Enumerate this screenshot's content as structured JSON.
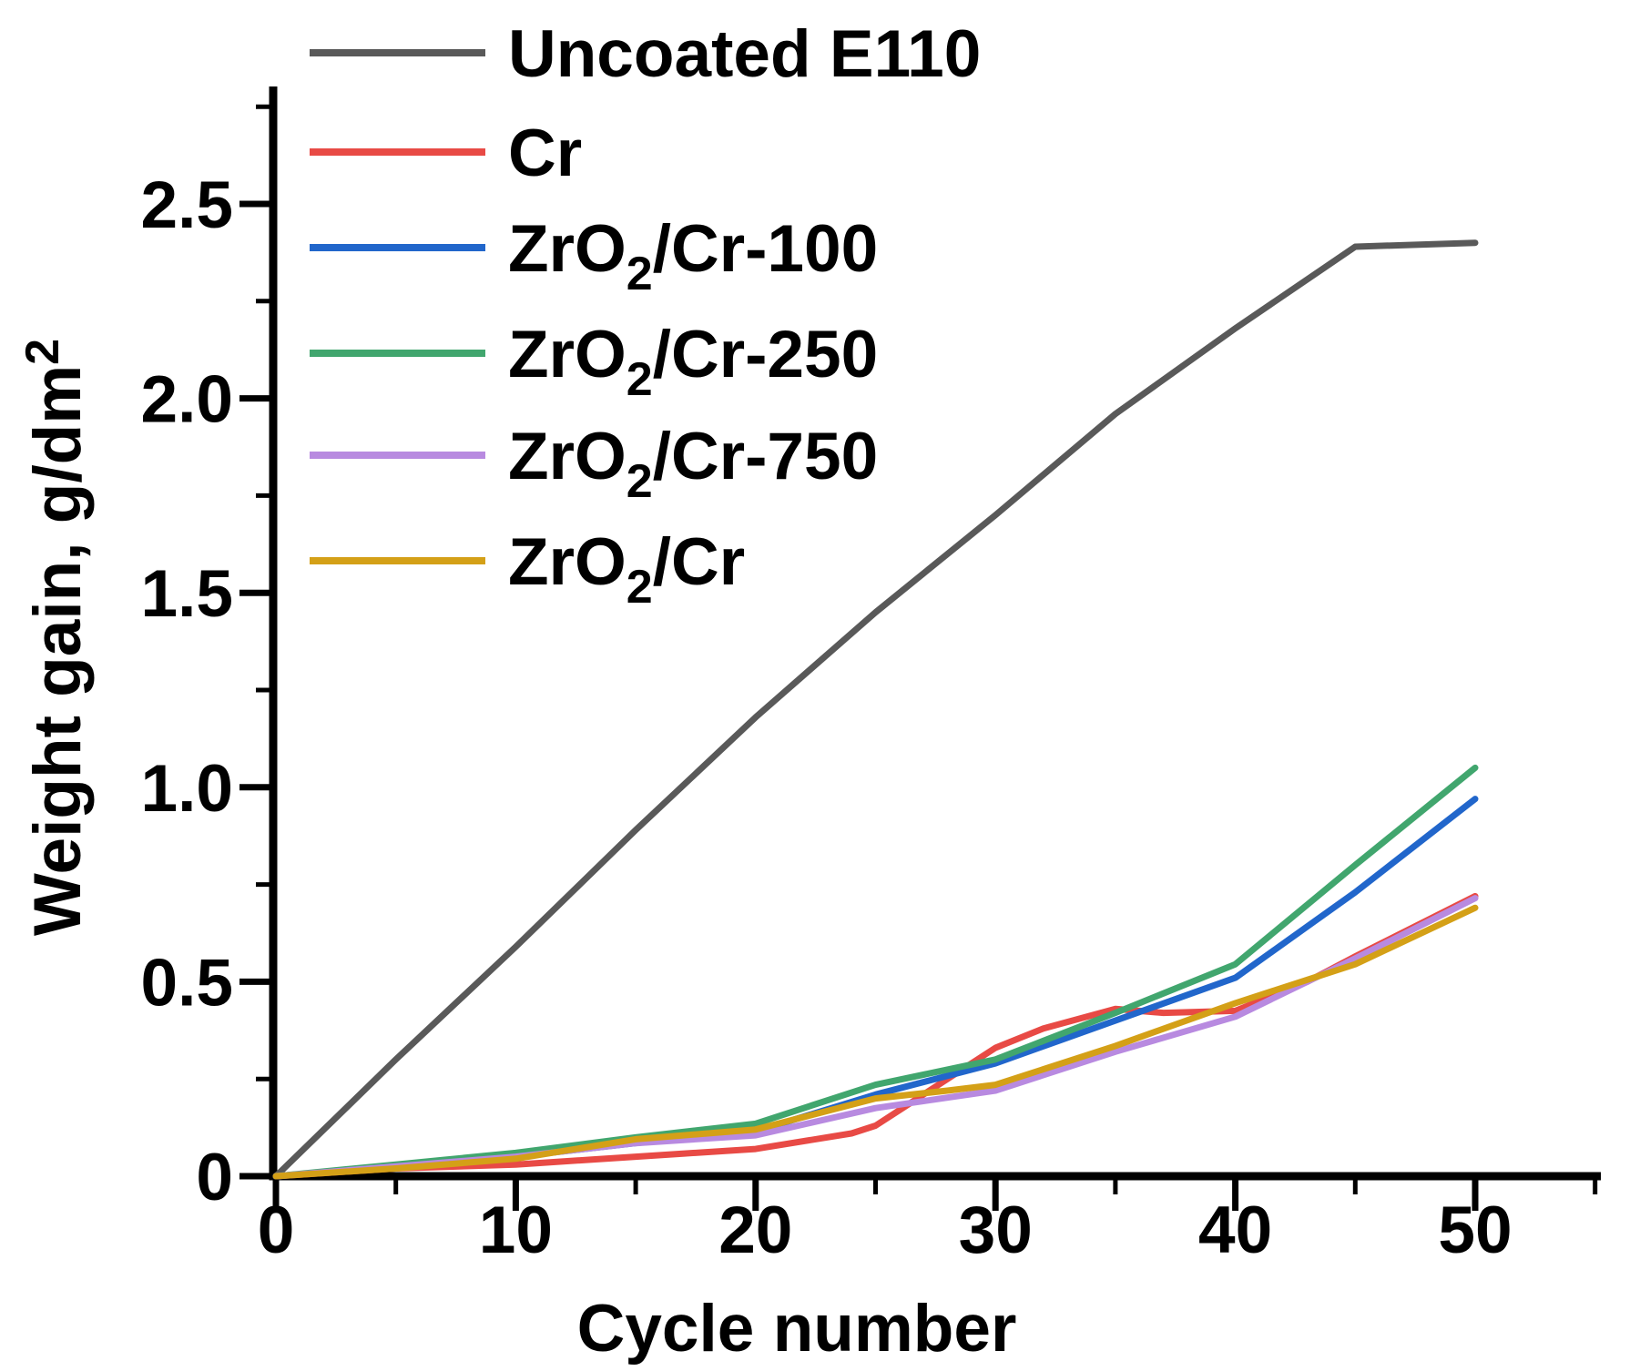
{
  "figure": {
    "background": "#ffffff",
    "axis_color": "#000000"
  },
  "chart_data": {
    "type": "line",
    "title": "",
    "xlabel": "Cycle number",
    "ylabel": {
      "pre": "Weight gain, g/dm",
      "sup": "2"
    },
    "xlim": [
      0,
      55.3
    ],
    "ylim": [
      0,
      2.8
    ],
    "grid": false,
    "legend_position": "upper-left",
    "x_major_ticks": [
      0,
      10,
      20,
      30,
      40,
      50
    ],
    "x_minor_ticks": [
      5,
      15,
      25,
      35,
      45,
      55
    ],
    "x_tick_labels": [
      "0",
      "10",
      "20",
      "30",
      "40",
      "50"
    ],
    "y_major_ticks": [
      0,
      0.5,
      1.0,
      1.5,
      2.0,
      2.5
    ],
    "y_minor_ticks": [
      0.25,
      0.75,
      1.25,
      1.75,
      2.25,
      2.75
    ],
    "y_tick_labels": [
      "0",
      "0.5",
      "1.0",
      "1.5",
      "2.0",
      "2.5"
    ],
    "series": [
      {
        "name": "Uncoated E110",
        "label_parts": {
          "pre": "Uncoated E110",
          "sub": "",
          "post": ""
        },
        "color": "#595959",
        "x": [
          0,
          5,
          10,
          15,
          20,
          25,
          30,
          35,
          40,
          45,
          50
        ],
        "y": [
          0,
          0.3,
          0.59,
          0.89,
          1.18,
          1.45,
          1.7,
          1.96,
          2.18,
          2.39,
          2.4
        ]
      },
      {
        "name": "Cr",
        "label_parts": {
          "pre": "Cr",
          "sub": "",
          "post": ""
        },
        "color": "#e84a45",
        "x": [
          0,
          5,
          10,
          15,
          20,
          24,
          25,
          26,
          28,
          30,
          32,
          35,
          37,
          40,
          43,
          45,
          50
        ],
        "y": [
          0,
          0.02,
          0.03,
          0.05,
          0.07,
          0.11,
          0.13,
          0.17,
          0.25,
          0.33,
          0.38,
          0.43,
          0.42,
          0.425,
          0.5,
          0.565,
          0.72
        ]
      },
      {
        "name": "ZrO₂/Cr-100",
        "label_parts": {
          "pre": "ZrO",
          "sub": "2",
          "post": "/Cr-100"
        },
        "color": "#2166cb",
        "x": [
          0,
          5,
          10,
          15,
          20,
          25,
          30,
          35,
          40,
          45,
          50
        ],
        "y": [
          0,
          0.025,
          0.05,
          0.085,
          0.115,
          0.21,
          0.29,
          0.4,
          0.51,
          0.73,
          0.97
        ]
      },
      {
        "name": "ZrO₂/Cr-250",
        "label_parts": {
          "pre": "ZrO",
          "sub": "2",
          "post": "/Cr-250"
        },
        "color": "#41a66e",
        "x": [
          0,
          5,
          10,
          15,
          20,
          25,
          30,
          35,
          40,
          45,
          50
        ],
        "y": [
          0,
          0.03,
          0.06,
          0.1,
          0.135,
          0.235,
          0.3,
          0.42,
          0.545,
          0.8,
          1.05
        ]
      },
      {
        "name": "ZrO₂/Cr-750",
        "label_parts": {
          "pre": "ZrO",
          "sub": "2",
          "post": "/Cr-750"
        },
        "color": "#b88ae0",
        "x": [
          0,
          5,
          10,
          15,
          20,
          25,
          30,
          35,
          40,
          45,
          50
        ],
        "y": [
          0,
          0.025,
          0.05,
          0.085,
          0.105,
          0.175,
          0.22,
          0.32,
          0.41,
          0.56,
          0.715
        ]
      },
      {
        "name": "ZrO₂/Cr",
        "label_parts": {
          "pre": "ZrO",
          "sub": "2",
          "post": "/Cr"
        },
        "color": "#d4a017",
        "x": [
          0,
          5,
          10,
          15,
          20,
          25,
          28,
          30,
          35,
          40,
          45,
          50
        ],
        "y": [
          0,
          0.02,
          0.045,
          0.095,
          0.12,
          0.2,
          0.22,
          0.235,
          0.335,
          0.445,
          0.545,
          0.69
        ]
      }
    ]
  }
}
